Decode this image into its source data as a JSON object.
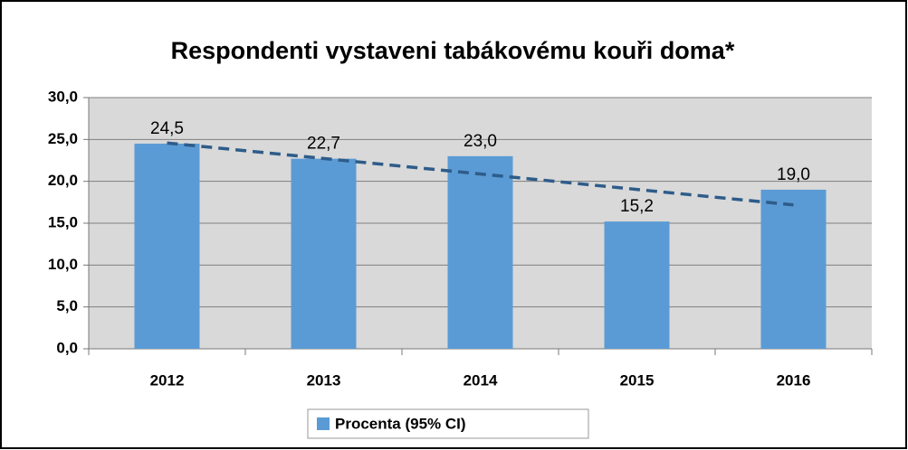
{
  "chart_data": {
    "type": "bar",
    "title": "Respondenti vystaveni tabákovému kouři doma*",
    "categories": [
      "2012",
      "2013",
      "2014",
      "2015",
      "2016"
    ],
    "series": [
      {
        "name": "Procenta (95% CI)",
        "color": "#5b9bd5",
        "values": [
          24.5,
          22.7,
          23.0,
          15.2,
          19.0
        ],
        "value_labels": [
          "24,5",
          "22,7",
          "23,0",
          "15,2",
          "19,0"
        ]
      }
    ],
    "ylim": [
      0,
      30
    ],
    "yticks": [
      {
        "value": 0,
        "label": "0,0"
      },
      {
        "value": 5,
        "label": "5,0"
      },
      {
        "value": 10,
        "label": "10,0"
      },
      {
        "value": 15,
        "label": "15,0"
      },
      {
        "value": 20,
        "label": "20,0"
      },
      {
        "value": 25,
        "label": "25,0"
      },
      {
        "value": 30,
        "label": "30,0"
      }
    ],
    "grid": true,
    "trendline": true,
    "trendline_color": "#2e5c8a",
    "legend": "bottom"
  }
}
